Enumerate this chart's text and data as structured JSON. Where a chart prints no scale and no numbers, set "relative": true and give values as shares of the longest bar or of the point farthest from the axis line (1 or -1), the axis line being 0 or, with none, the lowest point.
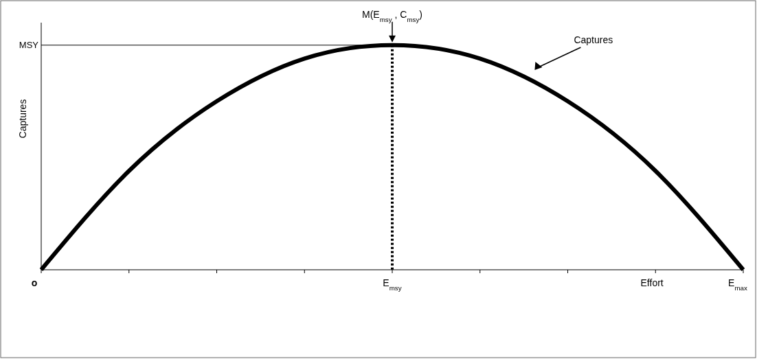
{
  "chart_data": {
    "type": "line",
    "relative": true,
    "ylabel": "Captures",
    "xlabel": "Effort",
    "categories": [
      "o",
      null,
      null,
      null,
      "E$_{msy}$",
      null,
      null,
      null,
      "E$_{max}$"
    ],
    "series": [
      {
        "color": "#000000",
        "values": [
          0,
          0.44,
          0.75,
          0.94,
          1,
          0.94,
          0.75,
          0.44,
          0
        ]
      }
    ],
    "marker": "none",
    "line_style": "solid",
    "grid": false,
    "ref_lines": [
      {
        "axis": "y",
        "value": 1,
        "label": "MSY",
        "color": "#000000",
        "line_style": "solid"
      },
      {
        "axis": "x",
        "value": "E$_{msy}$",
        "label": null,
        "color": "#000000",
        "line_style": "dotted"
      }
    ],
    "annotations": [
      {
        "text": "M(E$_{msy}$ , C$_{msy}$)",
        "x": "E$_{msy}$",
        "y": 1
      },
      "Captures"
    ]
  }
}
